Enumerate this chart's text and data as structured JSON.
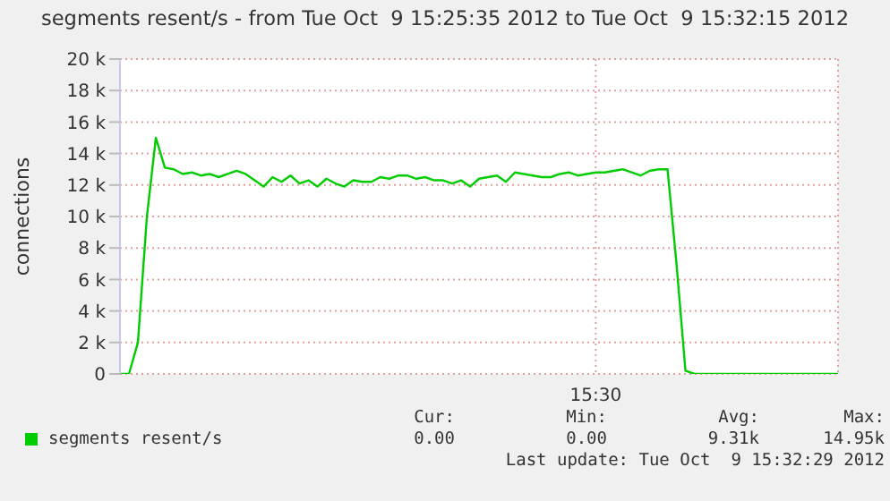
{
  "chart_data": {
    "type": "line",
    "title": "segments resent/s - from Tue Oct  9 15:25:35 2012 to Tue Oct  9 15:32:15 2012",
    "ylabel": "connections",
    "categories": [
      null,
      null,
      null,
      null,
      null,
      null,
      null,
      null,
      null,
      null,
      null,
      null,
      null,
      null,
      null,
      null,
      null,
      null,
      null,
      null,
      null,
      null,
      null,
      null,
      null,
      null,
      null,
      null,
      null,
      null,
      null,
      null,
      null,
      null,
      null,
      null,
      null,
      null,
      null,
      null,
      null,
      null,
      null,
      null,
      null,
      null,
      null,
      null,
      null,
      null,
      null,
      null,
      null,
      "15:30",
      null,
      null,
      null,
      null,
      null,
      null,
      null,
      null,
      null,
      null,
      null,
      null,
      null,
      null,
      null,
      null,
      null,
      null,
      null,
      null,
      null,
      null,
      null,
      null,
      null,
      null,
      null
    ],
    "series": [
      {
        "name": "segments resent/s",
        "color": "#00cc00",
        "values": [
          0,
          0,
          2000,
          10000,
          15000,
          13100,
          13000,
          12700,
          12800,
          12600,
          12700,
          12500,
          12700,
          12900,
          12700,
          12300,
          11900,
          12500,
          12200,
          12600,
          12100,
          12300,
          11900,
          12400,
          12100,
          11900,
          12300,
          12200,
          12200,
          12500,
          12400,
          12600,
          12600,
          12400,
          12500,
          12300,
          12300,
          12100,
          12300,
          11900,
          12400,
          12500,
          12600,
          12200,
          12800,
          12700,
          12600,
          12500,
          12500,
          12700,
          12800,
          12600,
          12700,
          12800,
          12800,
          12900,
          13000,
          12800,
          12600,
          12900,
          13000,
          13000,
          7000,
          200,
          0,
          0,
          0,
          0,
          0,
          0,
          0,
          0,
          0,
          0,
          0,
          0,
          0,
          0,
          0,
          0,
          0
        ]
      }
    ],
    "ylim": [
      0,
      20000
    ],
    "yticks": [
      0,
      {
        "value": 2000,
        "label": "2 k"
      },
      {
        "value": 4000,
        "label": "4 k"
      },
      {
        "value": 6000,
        "label": "6 k"
      },
      {
        "value": 8000,
        "label": "8 k"
      },
      {
        "value": 10000,
        "label": "10 k"
      },
      {
        "value": 12000,
        "label": "12 k"
      },
      {
        "value": 14000,
        "label": "14 k"
      },
      {
        "value": 16000,
        "label": "16 k"
      },
      {
        "value": 18000,
        "label": "18 k"
      },
      {
        "value": 20000,
        "label": "20 k"
      }
    ],
    "grid": true,
    "legend": "bottom",
    "marker": "none",
    "line_style": "solid",
    "annotations": [
      "Cur:",
      "Min:",
      "Avg:",
      "Max:",
      "0.00",
      "0.00",
      "9.31k",
      "14.95k",
      "Last update: Tue Oct  9 15:32:29 2012"
    ]
  }
}
